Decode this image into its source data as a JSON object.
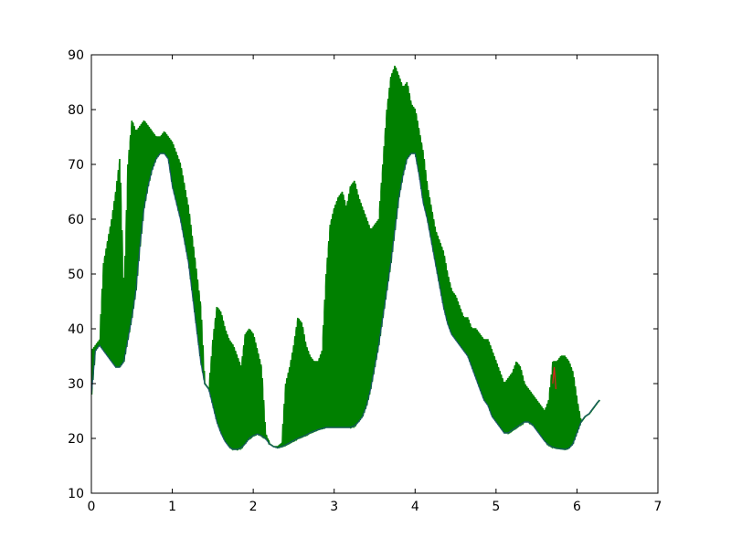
{
  "chart_data": {
    "type": "line",
    "title": "",
    "xlabel": "",
    "ylabel": "",
    "xlim": [
      0,
      7
    ],
    "ylim": [
      10,
      90
    ],
    "x_ticks": [
      0,
      1,
      2,
      3,
      4,
      5,
      6,
      7
    ],
    "y_ticks": [
      10,
      20,
      30,
      40,
      50,
      60,
      70,
      80,
      90
    ],
    "grid": false,
    "legend": "none",
    "series": [
      {
        "color": "#008000",
        "style": "line",
        "x": [
          0.0,
          0.05,
          0.1,
          0.15,
          0.2,
          0.25,
          0.3,
          0.35,
          0.4,
          0.45,
          0.5,
          0.55,
          0.6,
          0.65,
          0.7,
          0.75,
          0.8,
          0.85,
          0.9,
          0.95,
          1.0,
          1.05,
          1.1,
          1.15,
          1.2,
          1.25,
          1.3,
          1.35,
          1.4,
          1.45,
          1.5,
          1.55,
          1.6,
          1.65,
          1.7,
          1.75,
          1.8,
          1.85,
          1.9,
          1.95,
          2.0,
          2.05,
          2.1,
          2.15,
          2.2,
          2.25,
          2.3,
          2.35,
          2.4,
          2.45,
          2.5,
          2.55,
          2.6,
          2.65,
          2.7,
          2.75,
          2.8,
          2.85,
          2.9,
          2.95,
          3.0,
          3.05,
          3.1,
          3.15,
          3.2,
          3.25,
          3.3,
          3.35,
          3.4,
          3.45,
          3.5,
          3.55,
          3.6,
          3.65,
          3.7,
          3.75,
          3.8,
          3.85,
          3.9,
          3.95,
          4.0,
          4.05,
          4.1,
          4.15,
          4.2,
          4.25,
          4.3,
          4.35,
          4.4,
          4.45,
          4.5,
          4.55,
          4.6,
          4.65,
          4.7,
          4.75,
          4.8,
          4.85,
          4.9,
          4.95,
          5.0,
          5.05,
          5.1,
          5.15,
          5.2,
          5.25,
          5.3,
          5.35,
          5.4,
          5.45,
          5.5,
          5.55,
          5.6,
          5.65,
          5.7,
          5.75,
          5.8,
          5.85,
          5.9,
          5.95,
          6.0,
          6.05,
          6.1,
          6.15,
          6.2,
          6.25,
          6.28
        ],
        "low": [
          28,
          36,
          37,
          36,
          35,
          34,
          33,
          33,
          34,
          38,
          42,
          47,
          55,
          62,
          66,
          69,
          71,
          72,
          72,
          71,
          66,
          63,
          60,
          56,
          52,
          46,
          40,
          34,
          30,
          29,
          26,
          23,
          21,
          19.5,
          18.5,
          18,
          18,
          18.3,
          19,
          20,
          20.5,
          20.8,
          20.5,
          20,
          19,
          18.5,
          18.3,
          18.5,
          18.8,
          19.2,
          19.6,
          20,
          20.3,
          20.6,
          21,
          21.3,
          21.6,
          21.8,
          22,
          22,
          22,
          22,
          22,
          22,
          22,
          22.3,
          23,
          24,
          26,
          29,
          33,
          37,
          42,
          47,
          52,
          58,
          64,
          68,
          71,
          72,
          72,
          68,
          63,
          60,
          56,
          52,
          48,
          44,
          41,
          39,
          38,
          37,
          36,
          35,
          33,
          31,
          29,
          27,
          26,
          24,
          23,
          22,
          21,
          21,
          21.5,
          22,
          22.5,
          23,
          23,
          22.5,
          21.5,
          20.5,
          19.5,
          18.8,
          18.4,
          18.2,
          18.1,
          18,
          18.2,
          19,
          21,
          23,
          24,
          24.5,
          25.5,
          26.5,
          27
        ],
        "high": [
          36,
          37,
          38,
          52,
          56,
          60,
          65,
          71,
          45,
          70,
          78,
          76,
          77,
          78,
          77,
          76,
          75,
          75,
          76,
          75,
          74,
          72,
          70,
          66,
          62,
          56,
          50,
          44,
          30,
          29,
          38,
          44,
          43,
          40,
          38,
          37,
          35,
          33,
          39,
          40,
          39,
          36,
          33,
          21,
          19,
          18.5,
          18.5,
          19,
          30,
          33,
          37,
          42,
          41,
          37,
          35,
          34,
          34,
          36,
          50,
          59,
          62,
          64,
          65,
          62,
          66,
          67,
          64,
          62,
          60,
          58,
          59,
          60,
          70,
          80,
          86,
          88,
          86,
          84,
          85,
          81,
          80,
          76,
          72,
          66,
          62,
          58,
          56,
          54,
          50,
          47,
          46,
          44,
          42,
          42,
          40,
          40,
          39,
          38,
          38,
          36,
          34,
          32,
          30,
          31,
          32,
          34,
          33,
          30,
          29,
          28,
          27,
          26,
          25,
          27,
          34,
          34,
          35,
          35,
          34,
          32,
          27,
          23,
          24,
          24.5,
          25.5,
          26.5,
          27
        ]
      },
      {
        "color": "#1f4e7a",
        "style": "line",
        "note_values": "lower envelope overlay",
        "x": [
          0.0,
          0.05,
          0.1,
          0.15,
          0.2,
          0.25,
          0.3,
          0.35,
          0.4,
          0.45,
          0.5,
          0.55,
          0.6,
          0.65,
          0.7,
          0.75,
          0.8,
          0.85,
          0.9,
          0.95,
          1.0,
          1.05,
          1.1,
          1.15,
          1.2,
          1.25,
          1.3,
          1.35,
          1.4,
          1.45,
          1.5,
          1.55,
          1.6,
          1.65,
          1.7,
          1.75,
          1.8,
          1.85,
          1.9,
          1.95,
          2.0,
          2.05,
          2.1,
          2.15,
          2.2,
          2.25,
          2.3,
          2.35,
          2.4,
          2.45,
          2.5,
          2.55,
          2.6,
          2.65,
          2.7,
          2.75,
          2.8,
          2.85,
          2.9,
          2.95,
          3.0,
          3.05,
          3.1,
          3.15,
          3.2,
          3.25,
          3.3,
          3.35,
          3.4,
          3.45,
          3.5,
          3.55,
          3.6,
          3.65,
          3.7,
          3.75,
          3.8,
          3.85,
          3.9,
          3.95,
          4.0,
          4.05,
          4.1,
          4.15,
          4.2,
          4.25,
          4.3,
          4.35,
          4.4,
          4.45,
          4.5,
          4.55,
          4.6,
          4.65,
          4.7,
          4.75,
          4.8,
          4.85,
          4.9,
          4.95,
          5.0,
          5.05,
          5.1,
          5.15,
          5.2,
          5.25,
          5.3,
          5.35,
          5.4,
          5.45,
          5.5,
          5.55,
          5.6,
          5.65,
          5.7,
          5.75,
          5.8,
          5.85,
          5.9,
          5.95,
          6.0,
          6.05,
          6.1,
          6.15,
          6.2,
          6.25,
          6.28
        ],
        "values": [
          28,
          36,
          37,
          36,
          35,
          34,
          33,
          33,
          34,
          38,
          42,
          47,
          55,
          62,
          66,
          69,
          71,
          72,
          72,
          71,
          66,
          63,
          60,
          56,
          52,
          46,
          40,
          34,
          30,
          29,
          26,
          23,
          21,
          19.5,
          18.5,
          18,
          18,
          18.3,
          19,
          20,
          20.5,
          20.8,
          20.5,
          20,
          19,
          18.5,
          18.3,
          18.5,
          18.8,
          19.2,
          19.6,
          20,
          20.3,
          20.6,
          21,
          21.3,
          21.6,
          21.8,
          22,
          22,
          22,
          22,
          22,
          22,
          22,
          22.3,
          23,
          24,
          26,
          29,
          33,
          37,
          42,
          47,
          52,
          58,
          64,
          68,
          71,
          72,
          72,
          68,
          63,
          60,
          56,
          52,
          48,
          44,
          41,
          39,
          38,
          37,
          36,
          35,
          33,
          31,
          29,
          27,
          26,
          24,
          23,
          22,
          21,
          21,
          21.5,
          22,
          22.5,
          23,
          23,
          22.5,
          21.5,
          20.5,
          19.5,
          18.8,
          18.4,
          18.2,
          18.1,
          18,
          18.2,
          19,
          21,
          23,
          24,
          24.5,
          25.5,
          26.5,
          27
        ]
      },
      {
        "color": "#e02020",
        "style": "line",
        "x": [
          5.7,
          5.72,
          5.74
        ],
        "values": [
          30,
          33,
          29
        ]
      }
    ]
  }
}
